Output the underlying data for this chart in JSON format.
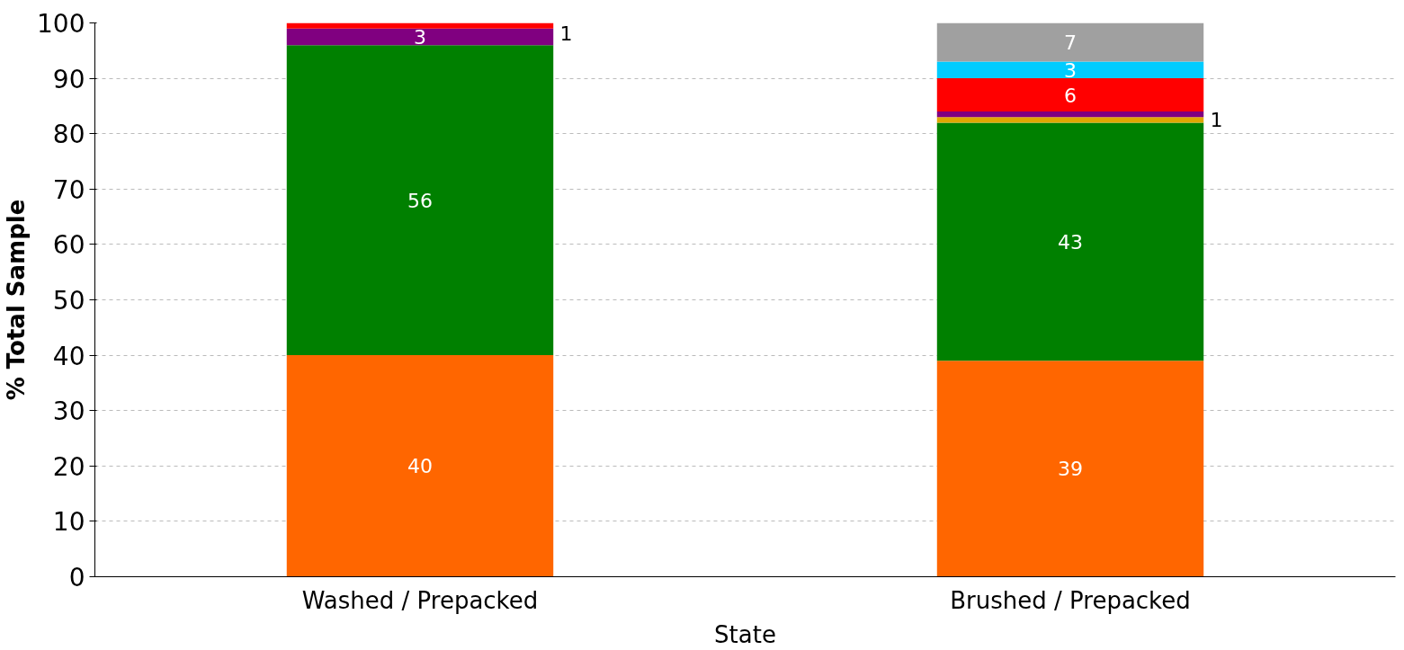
{
  "chart_data": {
    "type": "bar",
    "stacked": true,
    "xlabel": "State",
    "ylabel": "% Total Sample",
    "categories": [
      "Washed / Prepacked",
      "Brushed / Prepacked"
    ],
    "series": [
      {
        "color": "#ff6600",
        "values": [
          40,
          39
        ],
        "value_labels": [
          "40",
          "39"
        ]
      },
      {
        "color": "#008000",
        "values": [
          56,
          43
        ],
        "value_labels": [
          "56",
          "43"
        ]
      },
      {
        "color": "#e0a800",
        "values": [
          null,
          1
        ],
        "value_labels": [
          null,
          "1"
        ]
      },
      {
        "color": "#800080",
        "values": [
          3,
          1
        ],
        "value_labels": [
          "3",
          null
        ]
      },
      {
        "color": "#ff0000",
        "values": [
          1,
          6
        ],
        "value_labels": [
          "1",
          "6"
        ]
      },
      {
        "color": "#00ccff",
        "values": [
          null,
          3
        ],
        "value_labels": [
          null,
          "3"
        ]
      },
      {
        "color": "#a0a0a0",
        "values": [
          null,
          7
        ],
        "value_labels": [
          null,
          "7"
        ]
      }
    ],
    "ylim": [
      0,
      100
    ],
    "yticks": [
      0,
      10,
      20,
      30,
      40,
      50,
      60,
      70,
      80,
      90,
      100
    ],
    "grid": "y"
  }
}
